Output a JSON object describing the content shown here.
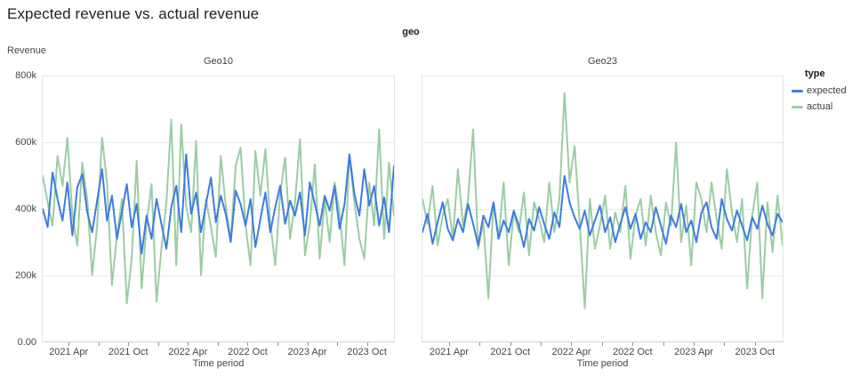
{
  "header": {
    "title": "Expected revenue vs. actual revenue",
    "facet_label": "geo"
  },
  "axes": {
    "y_title": "Revenue",
    "x_title": "Time period",
    "y_ticks": [
      "800k",
      "600k",
      "400k",
      "200k",
      "0.00"
    ],
    "x_ticks": [
      "2021 Apr",
      "2021 Oct",
      "2022 Apr",
      "2022 Oct",
      "2023 Apr",
      "2023 Oct"
    ]
  },
  "legend": {
    "title": "type",
    "entries": [
      {
        "label": "expected",
        "color": "#3d7ce0"
      },
      {
        "label": "actual",
        "color": "#9bcda3"
      }
    ]
  },
  "colors": {
    "expected": "#3d7ce0",
    "actual": "#9bcda3",
    "gridline": "#e9eaec",
    "axis_line": "#ccd0d4"
  },
  "chart_data": {
    "type": "line",
    "title": "Expected revenue vs. actual revenue",
    "facet_dimension": "geo",
    "xlabel": "Time period",
    "ylabel": "Revenue",
    "ylim": [
      0,
      800000
    ],
    "values_unit": "thousands",
    "x_range_label_start": "2021 Apr",
    "x_range_label_end": "2023 Oct",
    "x_tick_labels": [
      "2021 Apr",
      "2021 Oct",
      "2022 Apr",
      "2022 Oct",
      "2023 Apr",
      "2023 Oct"
    ],
    "legend_position": "right",
    "grid": true,
    "panels": [
      {
        "title": "Geo10",
        "series": [
          {
            "name": "expected",
            "color": "#3d7ce0",
            "values": [
              400,
              345,
              510,
              430,
              365,
              480,
              320,
              465,
              505,
              390,
              330,
              425,
              520,
              365,
              440,
              310,
              390,
              475,
              345,
              415,
              265,
              380,
              310,
              430,
              355,
              280,
              405,
              470,
              330,
              565,
              385,
              450,
              330,
              415,
              495,
              360,
              440,
              385,
              300,
              455,
              415,
              350,
              430,
              285,
              370,
              450,
              330,
              405,
              470,
              355,
              425,
              380,
              450,
              320,
              480,
              415,
              350,
              440,
              395,
              470,
              340,
              415,
              565,
              445,
              380,
              520,
              410,
              470,
              350,
              435,
              330,
              530
            ]
          },
          {
            "name": "actual",
            "color": "#9bcda3",
            "values": [
              500,
              420,
              350,
              560,
              470,
              615,
              380,
              290,
              540,
              430,
              200,
              350,
              615,
              480,
              170,
              320,
              430,
              115,
              250,
              545,
              160,
              355,
              475,
              120,
              280,
              420,
              670,
              230,
              655,
              410,
              330,
              605,
              200,
              430,
              345,
              255,
              560,
              410,
              305,
              530,
              585,
              350,
              230,
              575,
              440,
              580,
              360,
              230,
              445,
              555,
              310,
              420,
              610,
              260,
              355,
              535,
              250,
              430,
              300,
              480,
              390,
              230,
              560,
              420,
              310,
              250,
              480,
              350,
              640,
              310,
              540,
              380
            ]
          }
        ]
      },
      {
        "title": "Geo23",
        "series": [
          {
            "name": "expected",
            "color": "#3d7ce0",
            "values": [
              330,
              385,
              295,
              360,
              420,
              340,
              305,
              370,
              330,
              415,
              355,
              290,
              380,
              345,
              420,
              310,
              365,
              330,
              395,
              350,
              285,
              370,
              335,
              405,
              355,
              310,
              390,
              345,
              500,
              420,
              375,
              340,
              395,
              320,
              365,
              410,
              330,
              375,
              300,
              355,
              405,
              340,
              385,
              310,
              360,
              330,
              405,
              350,
              295,
              380,
              345,
              415,
              330,
              365,
              300,
              390,
              420,
              345,
              310,
              430,
              370,
              335,
              395,
              350,
              305,
              375,
              340,
              410,
              355,
              320,
              385,
              360
            ]
          },
          {
            "name": "actual",
            "color": "#9bcda3",
            "values": [
              430,
              355,
              470,
              290,
              380,
              430,
              310,
              520,
              350,
              430,
              640,
              280,
              360,
              130,
              420,
              310,
              480,
              230,
              390,
              330,
              450,
              260,
              420,
              370,
              300,
              480,
              330,
              430,
              750,
              480,
              590,
              360,
              100,
              430,
              280,
              350,
              440,
              280,
              390,
              330,
              470,
              250,
              380,
              430,
              290,
              440,
              330,
              260,
              420,
              350,
              600,
              300,
              410,
              230,
              480,
              430,
              330,
              480,
              370,
              280,
              520,
              390,
              300,
              430,
              160,
              380,
              480,
              130,
              420,
              270,
              440,
              290
            ]
          }
        ]
      }
    ]
  }
}
